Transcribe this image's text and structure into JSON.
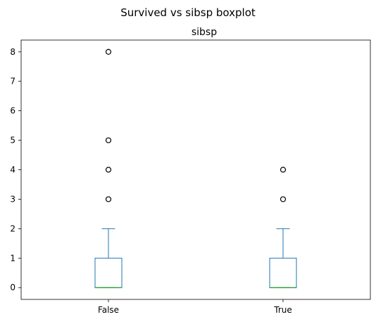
{
  "chart_data": {
    "type": "box",
    "title": "Survived vs sibsp boxplot",
    "subtitle": "sibsp",
    "xlabel": "",
    "ylabel": "",
    "ylim": [
      -0.4,
      8.4
    ],
    "yticks": [
      0,
      1,
      2,
      3,
      4,
      5,
      6,
      7,
      8
    ],
    "categories": [
      "False",
      "True"
    ],
    "grid": false,
    "boxes": [
      {
        "category": "False",
        "whislo": 0,
        "q1": 0,
        "med": 0,
        "q3": 1,
        "whishi": 2,
        "fliers": [
          3,
          4,
          5,
          8
        ]
      },
      {
        "category": "True",
        "whislo": 0,
        "q1": 0,
        "med": 0,
        "q3": 1,
        "whishi": 2,
        "fliers": [
          3,
          4
        ]
      }
    ],
    "colors": {
      "box": "#1f77b4",
      "median": "#2ca02c",
      "flier": "#000000"
    }
  }
}
